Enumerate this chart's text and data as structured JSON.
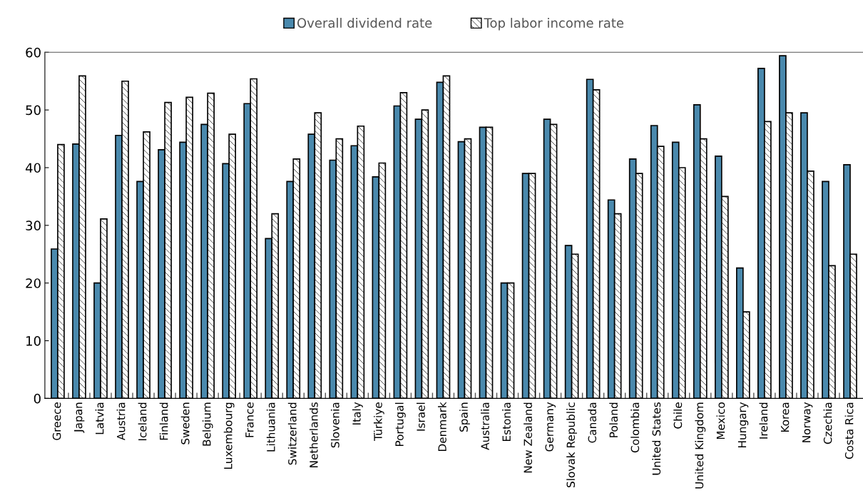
{
  "chart_data": {
    "type": "bar",
    "categories": [
      "Greece",
      "Japan",
      "Latvia",
      "Austria",
      "Iceland",
      "Finland",
      "Sweden",
      "Belgium",
      "Luxembourg",
      "France",
      "Lithuania",
      "Switzerland",
      "Netherlands",
      "Slovenia",
      "Italy",
      "Türkiye",
      "Portugal",
      "Israel",
      "Denmark",
      "Spain",
      "Australia",
      "Estonia",
      "New Zealand",
      "Germany",
      "Slovak Republic",
      "Canada",
      "Poland",
      "Colombia",
      "United States",
      "Chile",
      "United Kingdom",
      "Mexico",
      "Hungary",
      "Ireland",
      "Korea",
      "Norway",
      "Czechia",
      "Costa Rica"
    ],
    "series": [
      {
        "name": "Overall dividend rate",
        "color": "#4a89ad",
        "values": [
          25.9,
          44.1,
          20,
          45.6,
          37.6,
          43.1,
          44.4,
          47.5,
          40.7,
          51.1,
          27.7,
          37.6,
          45.8,
          41.3,
          43.8,
          38.4,
          50.7,
          48.4,
          54.8,
          44.5,
          47.0,
          20,
          39.0,
          48.4,
          26.5,
          55.3,
          34.4,
          41.5,
          47.3,
          44.4,
          50.9,
          42.0,
          22.6,
          57.2,
          59.4,
          49.5,
          37.6,
          40.5
        ]
      },
      {
        "name": "Top labor income rate",
        "color": "#000000",
        "values": [
          44.0,
          55.9,
          31.1,
          55.0,
          46.2,
          51.3,
          52.2,
          52.9,
          45.8,
          55.4,
          32.0,
          41.5,
          49.5,
          45.0,
          47.2,
          40.8,
          53.0,
          50.0,
          55.9,
          45.0,
          47.0,
          20.0,
          39.0,
          47.5,
          25.0,
          53.5,
          32.0,
          39.0,
          43.7,
          40.0,
          45.0,
          35.0,
          15.0,
          48.0,
          49.5,
          39.4,
          23.0,
          25.0
        ]
      }
    ],
    "ylim": [
      0,
      60
    ],
    "yticks": [
      0,
      10,
      20,
      30,
      40,
      50,
      60
    ],
    "grid": false,
    "legend": "top"
  }
}
